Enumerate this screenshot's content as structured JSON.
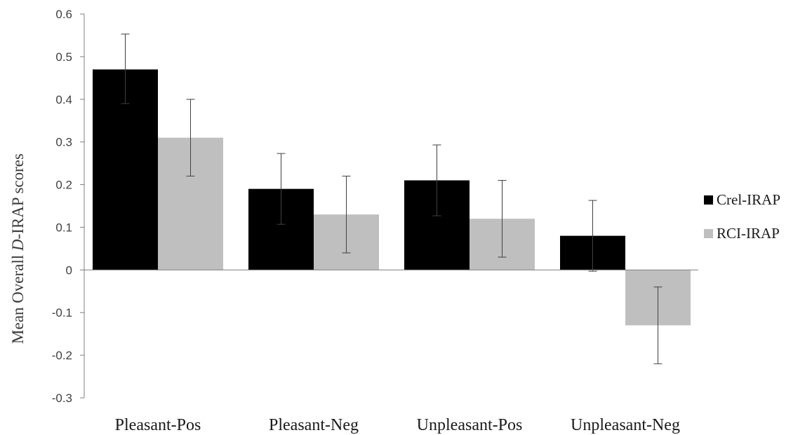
{
  "chart_data": {
    "type": "bar",
    "title": "",
    "xlabel": "",
    "ylabel_parts": [
      "Mean Overall ",
      "D",
      "-IRAP scores"
    ],
    "ylim": [
      -0.3,
      0.6
    ],
    "yticks": [
      "0.6",
      "0.5",
      "0.4",
      "0.3",
      "0.2",
      "0.1",
      "0",
      "-0.1",
      "-0.2",
      "-0.3"
    ],
    "categories": [
      "Pleasant-Pos",
      "Pleasant-Neg",
      "Unpleasant-Pos",
      "Unpleasant-Neg"
    ],
    "series": [
      {
        "name": "Crel-IRAP",
        "color": "#000000",
        "values": [
          0.47,
          0.19,
          0.21,
          0.08
        ],
        "error_low": [
          0.39,
          0.107,
          0.127,
          -0.003
        ],
        "error_high": [
          0.553,
          0.273,
          0.293,
          0.163
        ]
      },
      {
        "name": "RCI-IRAP",
        "color": "#bfbfbf",
        "values": [
          0.31,
          0.13,
          0.12,
          -0.13
        ],
        "error_low": [
          0.22,
          0.04,
          0.03,
          -0.22
        ],
        "error_high": [
          0.4,
          0.22,
          0.21,
          -0.04
        ]
      }
    ],
    "grid": false,
    "legend_position": "right"
  }
}
